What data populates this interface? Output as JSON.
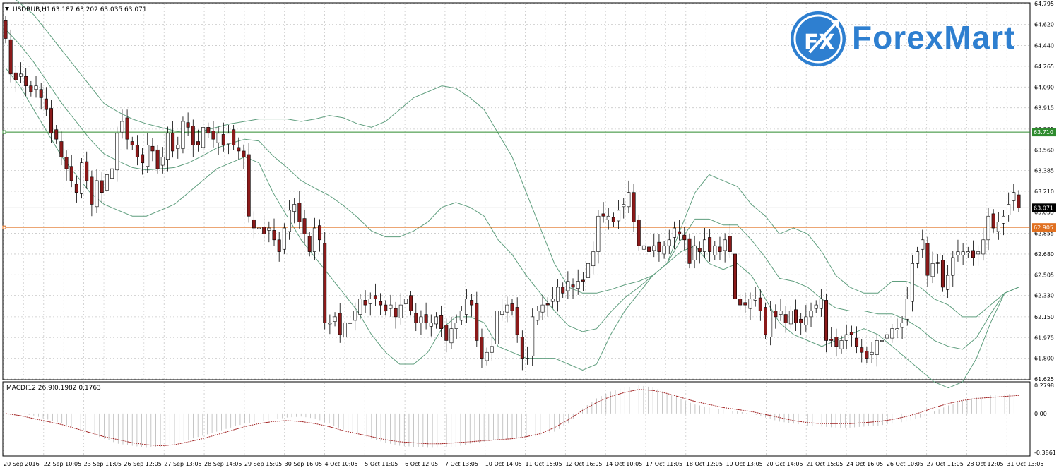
{
  "header": {
    "symbol": "USDRUB,H1",
    "ohlc": "63.187 63.202 63.035 63.071"
  },
  "logo": {
    "badge": "FX",
    "brand": "ForexMart"
  },
  "colors": {
    "bull": "#ffffff",
    "bear": "#8b1a1a",
    "band": "#5f9e7e",
    "support": "#2e8b2e",
    "resistance": "#e07020",
    "macd_signal": "#a02020",
    "grid": "#c8c8c8"
  },
  "levels": {
    "resistance_line": {
      "value": 63.71,
      "label": "63.710"
    },
    "support_line": {
      "value": 62.905,
      "label": "62.905"
    },
    "current_price": {
      "value": 63.071,
      "label": "63.071"
    }
  },
  "chart_data": [
    {
      "type": "candlestick",
      "name": "USDRUB,H1",
      "ylim": [
        61.625,
        64.795
      ],
      "y_ticks": [
        "64.795",
        "64.620",
        "64.440",
        "64.265",
        "64.090",
        "63.915",
        "63.735",
        "63.560",
        "63.385",
        "63.210",
        "63.035",
        "62.855",
        "62.680",
        "62.505",
        "62.330",
        "62.150",
        "61.975",
        "61.800",
        "61.625"
      ],
      "x_labels": [
        "20 Sep 2016",
        "22 Sep 10:05",
        "23 Sep 11:05",
        "26 Sep 12:05",
        "27 Sep 13:05",
        "28 Sep 14:05",
        "29 Sep 15:05",
        "30 Sep 16:05",
        "4 Oct 10:05",
        "5 Oct 11:05",
        "6 Oct 12:05",
        "7 Oct 13:05",
        "10 Oct 14:05",
        "11 Oct 15:05",
        "12 Oct 16:05",
        "14 Oct 10:05",
        "17 Oct 11:05",
        "18 Oct 12:05",
        "19 Oct 13:05",
        "20 Oct 14:05",
        "21 Oct 15:05",
        "24 Oct 16:05",
        "26 Oct 10:05",
        "27 Oct 11:05",
        "28 Oct 12:05",
        "31 Oct 13:05"
      ],
      "close": [
        64.5,
        64.2,
        64.15,
        64.2,
        64.1,
        64.05,
        64.1,
        64.0,
        63.9,
        63.7,
        63.65,
        63.5,
        63.4,
        63.3,
        63.2,
        63.45,
        63.3,
        63.1,
        63.3,
        63.2,
        63.35,
        63.4,
        63.7,
        63.8,
        63.65,
        63.6,
        63.5,
        63.45,
        63.6,
        63.55,
        63.4,
        63.5,
        63.7,
        63.55,
        63.6,
        63.8,
        63.75,
        63.6,
        63.6,
        63.75,
        63.7,
        63.65,
        63.7,
        63.6,
        63.7,
        63.6,
        63.55,
        63.5,
        63.0,
        62.9,
        62.9,
        62.85,
        62.9,
        62.8,
        62.7,
        62.9,
        63.05,
        63.1,
        62.95,
        62.85,
        62.7,
        62.9,
        62.8,
        62.1,
        62.1,
        62.15,
        62.0,
        62.1,
        62.1,
        62.2,
        62.3,
        62.25,
        62.3,
        62.3,
        62.25,
        62.2,
        62.25,
        62.15,
        62.25,
        62.3,
        62.2,
        62.1,
        62.15,
        62.1,
        62.1,
        62.15,
        62.05,
        61.95,
        62.05,
        62.1,
        62.2,
        62.3,
        62.25,
        61.95,
        61.8,
        61.85,
        61.9,
        62.2,
        62.2,
        62.25,
        62.2,
        62.0,
        61.8,
        61.8,
        62.15,
        62.2,
        62.25,
        62.25,
        62.3,
        62.4,
        62.35,
        62.45,
        62.4,
        62.45,
        62.45,
        62.6,
        62.7,
        63.0,
        63.0,
        63.0,
        62.95,
        63.05,
        63.1,
        63.2,
        62.95,
        62.75,
        62.75,
        62.7,
        62.75,
        62.7,
        62.75,
        62.8,
        62.9,
        62.85,
        62.8,
        62.6,
        62.75,
        62.7,
        62.8,
        62.7,
        62.75,
        62.7,
        62.8,
        62.7,
        62.3,
        62.25,
        62.25,
        62.3,
        62.3,
        62.2,
        62.0,
        62.2,
        62.15,
        62.2,
        62.1,
        62.2,
        62.1,
        62.1,
        62.15,
        62.2,
        62.25,
        62.3,
        61.95,
        61.95,
        61.9,
        61.95,
        62.0,
        62.0,
        61.9,
        61.85,
        61.8,
        61.85,
        61.95,
        61.95,
        62.0,
        62.05,
        62.05,
        62.1,
        62.3,
        62.6,
        62.7,
        62.8,
        62.5,
        62.6,
        62.6,
        62.4,
        62.5,
        62.65,
        62.7,
        62.7,
        62.7,
        62.65,
        62.7,
        62.8,
        63.0,
        62.9,
        62.95,
        63.0,
        63.1,
        63.2,
        63.071
      ],
      "upper_band": [
        64.9,
        64.8,
        64.7,
        64.55,
        64.4,
        64.25,
        64.1,
        63.95,
        63.88,
        63.82,
        63.78,
        63.75,
        63.72,
        63.7,
        63.72,
        63.75,
        63.78,
        63.8,
        63.82,
        63.82,
        63.82,
        63.8,
        63.82,
        63.85,
        63.83,
        63.78,
        63.75,
        63.8,
        63.9,
        64.0,
        64.05,
        64.1,
        64.08,
        64.0,
        63.9,
        63.7,
        63.5,
        63.2,
        62.9,
        62.6,
        62.4,
        62.35,
        62.35,
        62.38,
        62.42,
        62.45,
        62.5,
        62.6,
        62.9,
        63.2,
        63.35,
        63.3,
        63.25,
        63.1,
        63.0,
        62.85,
        62.9,
        62.85,
        62.7,
        62.5,
        62.4,
        62.35,
        62.35,
        62.45,
        62.45,
        62.4,
        62.3,
        62.25,
        62.15,
        62.15,
        62.25,
        62.35,
        62.4
      ],
      "lower_band": [
        64.25,
        64.1,
        63.9,
        63.7,
        63.5,
        63.35,
        63.2,
        63.1,
        63.05,
        63.0,
        63.0,
        63.05,
        63.1,
        63.2,
        63.3,
        63.4,
        63.45,
        63.5,
        63.45,
        63.2,
        63.0,
        62.8,
        62.65,
        62.5,
        62.35,
        62.2,
        62.0,
        61.85,
        61.75,
        61.75,
        61.85,
        62.05,
        62.15,
        62.15,
        62.1,
        61.9,
        61.85,
        61.8,
        61.8,
        61.8,
        61.75,
        61.7,
        61.75,
        62.0,
        62.2,
        62.35,
        62.5,
        62.6,
        62.7,
        62.75,
        62.6,
        62.55,
        62.6,
        62.5,
        62.3,
        62.1,
        62.0,
        61.95,
        61.9,
        61.95,
        62.0,
        62.05,
        62.0,
        61.9,
        61.8,
        61.7,
        61.6,
        61.55,
        61.6,
        61.8,
        62.1,
        62.35,
        62.4
      ]
    },
    {
      "type": "bar",
      "name": "MACD(12,26,9)",
      "values_label": "0.1982 0.1763",
      "ylim": [
        -0.3861,
        0.2798
      ],
      "y_ticks": [
        "0.2798",
        "0.00",
        "-0.3861"
      ],
      "histogram": [
        0.0,
        0.0,
        -0.02,
        -0.06,
        -0.1,
        -0.15,
        -0.2,
        -0.25,
        -0.3,
        -0.32,
        -0.34,
        -0.33,
        -0.3,
        -0.26,
        -0.22,
        -0.18,
        -0.14,
        -0.1,
        -0.08,
        -0.06,
        -0.04,
        -0.03,
        -0.05,
        -0.1,
        -0.16,
        -0.2,
        -0.25,
        -0.29,
        -0.32,
        -0.33,
        -0.34,
        -0.34,
        -0.33,
        -0.3,
        -0.28,
        -0.26,
        -0.25,
        -0.24,
        -0.22,
        -0.18,
        -0.1,
        0.05,
        0.15,
        0.22,
        0.26,
        0.28,
        0.26,
        0.2,
        0.14,
        0.09,
        0.06,
        0.04,
        0.02,
        0.0,
        -0.04,
        -0.08,
        -0.1,
        -0.12,
        -0.13,
        -0.14,
        -0.14,
        -0.13,
        -0.12,
        -0.1,
        -0.08,
        -0.04,
        0.02,
        0.08,
        0.13,
        0.16,
        0.18,
        0.19,
        0.2
      ],
      "signal": [
        0.0,
        -0.02,
        -0.05,
        -0.08,
        -0.11,
        -0.15,
        -0.19,
        -0.23,
        -0.26,
        -0.29,
        -0.31,
        -0.32,
        -0.31,
        -0.28,
        -0.25,
        -0.21,
        -0.17,
        -0.13,
        -0.1,
        -0.08,
        -0.07,
        -0.08,
        -0.1,
        -0.13,
        -0.17,
        -0.2,
        -0.23,
        -0.26,
        -0.28,
        -0.29,
        -0.3,
        -0.3,
        -0.29,
        -0.28,
        -0.27,
        -0.26,
        -0.25,
        -0.23,
        -0.2,
        -0.14,
        -0.06,
        0.03,
        0.11,
        0.17,
        0.21,
        0.24,
        0.23,
        0.2,
        0.16,
        0.12,
        0.09,
        0.06,
        0.04,
        0.02,
        -0.01,
        -0.04,
        -0.07,
        -0.09,
        -0.1,
        -0.1,
        -0.1,
        -0.09,
        -0.08,
        -0.06,
        -0.03,
        0.01,
        0.06,
        0.1,
        0.13,
        0.15,
        0.16,
        0.17,
        0.18
      ]
    }
  ]
}
